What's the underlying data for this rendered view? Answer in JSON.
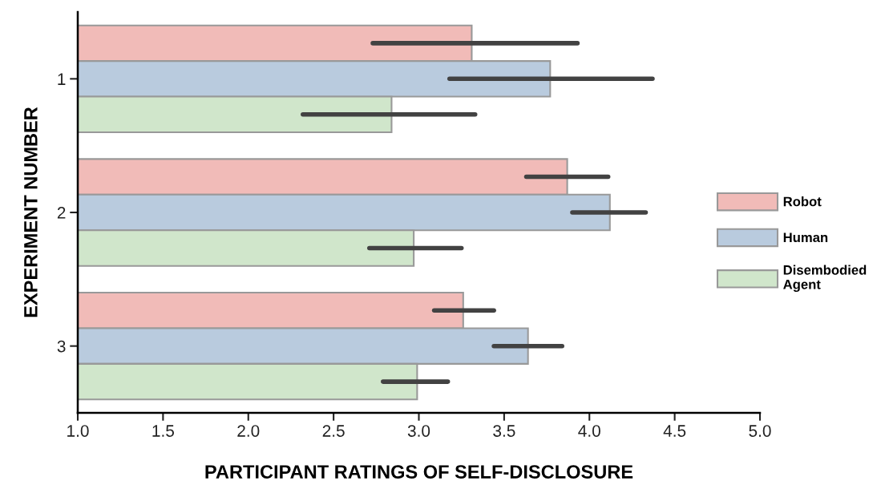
{
  "chart_data": {
    "type": "bar",
    "orientation": "horizontal",
    "xlabel": "PARTICIPANT RATINGS OF SELF-DISCLOSURE",
    "ylabel": "EXPERIMENT NUMBER",
    "categories": [
      "1",
      "2",
      "3"
    ],
    "series": [
      {
        "name": "Robot",
        "color": "#f1bbb8",
        "values": [
          3.31,
          3.87,
          3.26
        ],
        "errors": [
          [
            2.73,
            3.93
          ],
          [
            3.63,
            4.11
          ],
          [
            3.09,
            3.44
          ]
        ]
      },
      {
        "name": "Human",
        "color": "#b9cbde",
        "values": [
          3.77,
          4.12,
          3.64
        ],
        "errors": [
          [
            3.18,
            4.37
          ],
          [
            3.9,
            4.33
          ],
          [
            3.44,
            3.84
          ]
        ]
      },
      {
        "name": "Disembodied\nAgent",
        "color": "#d0e6cb",
        "values": [
          2.84,
          2.97,
          2.99
        ],
        "errors": [
          [
            2.32,
            3.33
          ],
          [
            2.71,
            3.25
          ],
          [
            2.79,
            3.17
          ]
        ]
      }
    ],
    "xlim": [
      1.0,
      5.0
    ],
    "xticks": [
      {
        "value": 1.0,
        "label": "1.0"
      },
      1.5,
      {
        "value": 2.0,
        "label": "2.0"
      },
      2.5,
      {
        "value": 3.0,
        "label": "3.0"
      },
      3.5,
      {
        "value": 4.0,
        "label": "4.0"
      },
      4.5,
      {
        "value": 5.0,
        "label": "5.0"
      }
    ],
    "grid": false,
    "legend": "right"
  }
}
